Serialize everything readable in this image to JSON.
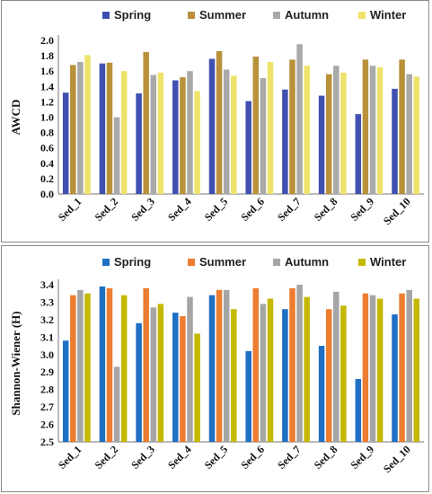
{
  "chart_data": [
    {
      "type": "bar",
      "title": "",
      "xlabel": "",
      "ylabel": "AWCD",
      "ylim": [
        0,
        2.0
      ],
      "yticks": [
        "0.0",
        "0.2",
        "0.4",
        "0.6",
        "0.8",
        "1.0",
        "1.2",
        "1.4",
        "1.6",
        "1.8",
        "2.0"
      ],
      "grid": false,
      "legend_position": "top",
      "categories": [
        "Sed_1",
        "Sed_2",
        "Sed_3",
        "Sed_4",
        "Sed_5",
        "Sed_6",
        "Sed_7",
        "Sed_8",
        "Sed_9",
        "Sed_10"
      ],
      "series": [
        {
          "name": "Spring",
          "color": "#4050b0",
          "values": [
            1.32,
            1.7,
            1.31,
            1.48,
            1.76,
            1.21,
            1.36,
            1.28,
            1.04,
            1.37
          ]
        },
        {
          "name": "Summer",
          "color": "#b8913a",
          "values": [
            1.68,
            1.71,
            1.85,
            1.52,
            1.86,
            1.79,
            1.75,
            1.56,
            1.75,
            1.75
          ]
        },
        {
          "name": "Autumn",
          "color": "#a9a9a9",
          "values": [
            1.72,
            1.0,
            1.55,
            1.6,
            1.62,
            1.51,
            1.95,
            1.67,
            1.67,
            1.56
          ]
        },
        {
          "name": "Winter",
          "color": "#eee36a",
          "values": [
            1.81,
            1.6,
            1.58,
            1.34,
            1.54,
            1.72,
            1.67,
            1.58,
            1.65,
            1.53
          ]
        }
      ]
    },
    {
      "type": "bar",
      "title": "",
      "xlabel": "",
      "ylabel": "Shannon-Wiener (H)",
      "ylim": [
        2.5,
        3.4
      ],
      "yticks": [
        "2.5",
        "2.6",
        "2.7",
        "2.8",
        "2.9",
        "3.0",
        "3.1",
        "3.2",
        "3.3",
        "3.4"
      ],
      "grid": false,
      "legend_position": "top",
      "categories": [
        "Sed_1",
        "Sed_2",
        "Sed_3",
        "Sed_4",
        "Sed_5",
        "Sed_6",
        "Sed_7",
        "Sed_8",
        "Sed_9",
        "Sed_10"
      ],
      "series": [
        {
          "name": "Spring",
          "color": "#1f6fc4",
          "values": [
            3.08,
            3.39,
            3.18,
            3.24,
            3.34,
            3.02,
            3.26,
            3.05,
            2.86,
            3.23
          ]
        },
        {
          "name": "Summer",
          "color": "#ed7d31",
          "values": [
            3.34,
            3.38,
            3.38,
            3.22,
            3.37,
            3.38,
            3.38,
            3.26,
            3.35,
            3.35
          ]
        },
        {
          "name": "Autumn",
          "color": "#a5a5a5",
          "values": [
            3.37,
            2.93,
            3.27,
            3.33,
            3.37,
            3.29,
            3.4,
            3.36,
            3.34,
            3.37
          ]
        },
        {
          "name": "Winter",
          "color": "#c4b800",
          "values": [
            3.35,
            3.34,
            3.29,
            3.12,
            3.26,
            3.32,
            3.33,
            3.28,
            3.32,
            3.32
          ]
        }
      ]
    }
  ]
}
